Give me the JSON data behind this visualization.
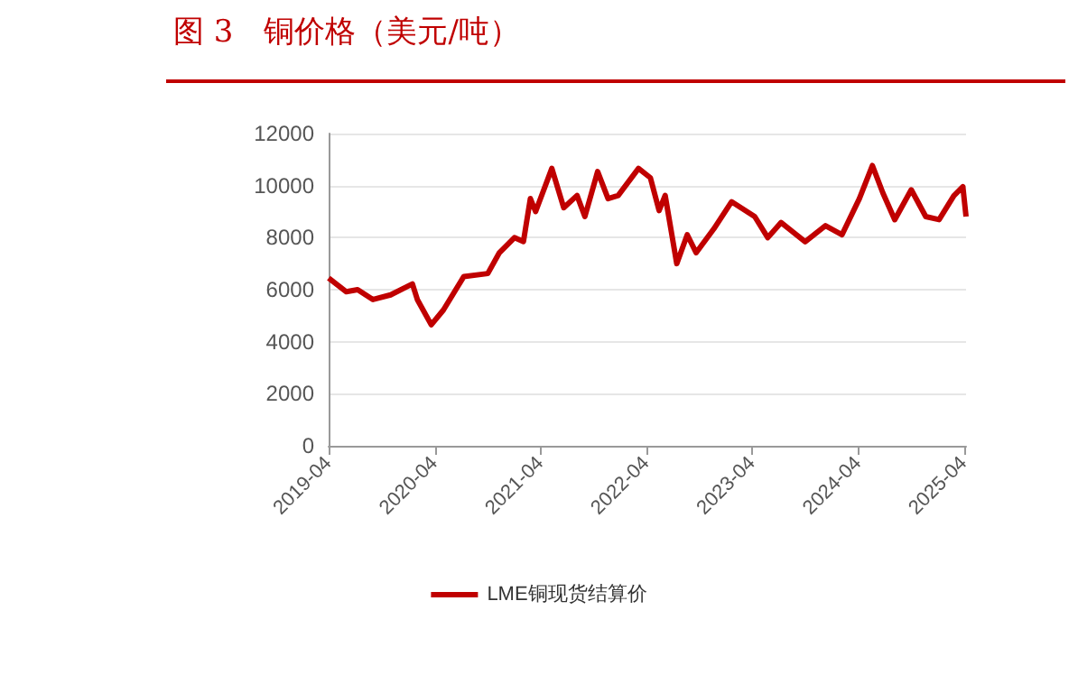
{
  "chart_data": {
    "type": "line",
    "title": "图 3　铜价格（美元/吨）",
    "x": [
      "2019-04-01",
      "2019-06-01",
      "2019-07-10",
      "2019-09-01",
      "2019-11-01",
      "2020-01-15",
      "2020-02-01",
      "2020-03-20",
      "2020-05-01",
      "2020-07-10",
      "2020-10-01",
      "2020-11-10",
      "2021-01-01",
      "2021-02-01",
      "2021-02-25",
      "2021-03-15",
      "2021-05-10",
      "2021-06-20",
      "2021-08-05",
      "2021-09-01",
      "2021-10-15",
      "2021-11-20",
      "2021-12-25",
      "2022-03-05",
      "2022-04-15",
      "2022-05-15",
      "2022-06-05",
      "2022-07-15",
      "2022-08-20",
      "2022-09-20",
      "2022-11-20",
      "2023-01-20",
      "2023-04-10",
      "2023-05-25",
      "2023-07-10",
      "2023-10-01",
      "2023-12-10",
      "2024-02-05",
      "2024-04-05",
      "2024-05-20",
      "2024-06-25",
      "2024-08-05",
      "2024-10-01",
      "2024-11-20",
      "2025-01-05",
      "2025-02-25",
      "2025-03-28",
      "2025-04-08"
    ],
    "series": [
      {
        "name": "LME铜现货结算价",
        "color": "#c00000",
        "values": [
          6450,
          5920,
          6000,
          5620,
          5800,
          6220,
          5620,
          4650,
          5220,
          6500,
          6620,
          7420,
          8000,
          7850,
          9500,
          9000,
          10660,
          9150,
          9620,
          8810,
          10540,
          9500,
          9620,
          10660,
          10300,
          9040,
          9620,
          7000,
          8110,
          7420,
          8340,
          9380,
          8810,
          8000,
          8580,
          7840,
          8460,
          8110,
          9500,
          10770,
          9720,
          8690,
          9840,
          8810,
          8690,
          9610,
          9960,
          8810
        ]
      }
    ],
    "xlim": [
      "2019-04-01",
      "2025-04-08"
    ],
    "xticks": [
      "2019-04",
      "2020-04",
      "2021-04",
      "2022-04",
      "2023-04",
      "2024-04",
      "2025-04"
    ],
    "ylim": [
      0,
      12000
    ],
    "yticks": [
      0,
      2000,
      4000,
      6000,
      8000,
      10000,
      12000
    ],
    "grid": "y",
    "legend": "bottom",
    "marker": "none",
    "line_style": "solid"
  }
}
